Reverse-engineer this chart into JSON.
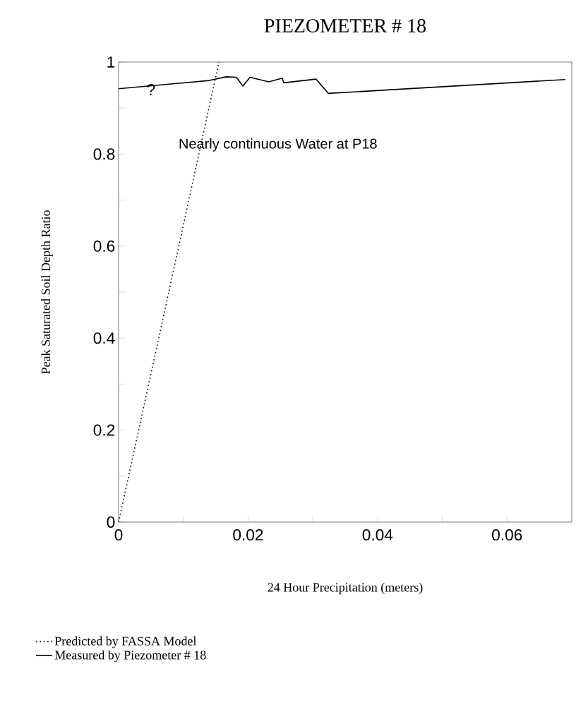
{
  "chart_data": {
    "type": "line",
    "title": "PIEZOMETER # 18",
    "xlabel": "24 Hour Precipitation (meters)",
    "ylabel": "Peak Saturated Soil Depth Ratio",
    "xlim": [
      0,
      0.07
    ],
    "ylim": [
      0,
      1
    ],
    "xticks": [
      0,
      {
        "value": 0.01,
        "label": null
      },
      0.02,
      {
        "value": 0.03,
        "label": null
      },
      0.04,
      {
        "value": 0.05,
        "label": null
      },
      0.06
    ],
    "yticks": [
      0,
      {
        "value": 0.1,
        "label": null
      },
      0.2,
      {
        "value": 0.3,
        "label": null
      },
      0.4,
      {
        "value": 0.5,
        "label": null
      },
      0.6,
      {
        "value": 0.7,
        "label": null
      },
      0.8,
      {
        "value": 0.9,
        "label": null
      },
      1
    ],
    "series": [
      {
        "name": "Predicted by FASSA Model",
        "color": "#000000",
        "line_style": "dotted",
        "x": [
          0,
          0.0155
        ],
        "values": [
          0,
          1
        ]
      },
      {
        "name": "Measured by Piezometer # 18",
        "color": "#000000",
        "line_style": "solid",
        "x": [
          0,
          0.014,
          0.0166,
          0.0182,
          0.0192,
          0.0203,
          0.0232,
          0.0253,
          0.0255,
          0.0305,
          0.0324,
          0.069
        ],
        "values": [
          0.942,
          0.96,
          0.968,
          0.967,
          0.948,
          0.967,
          0.957,
          0.965,
          0.955,
          0.963,
          0.932,
          0.962
        ]
      }
    ],
    "annotations": [
      "Nearly continuous Water at P18",
      {
        "text": "?",
        "x": 0.005,
        "y": 0.94
      }
    ],
    "legend": "bottom",
    "grid": false,
    "marker": "none"
  }
}
